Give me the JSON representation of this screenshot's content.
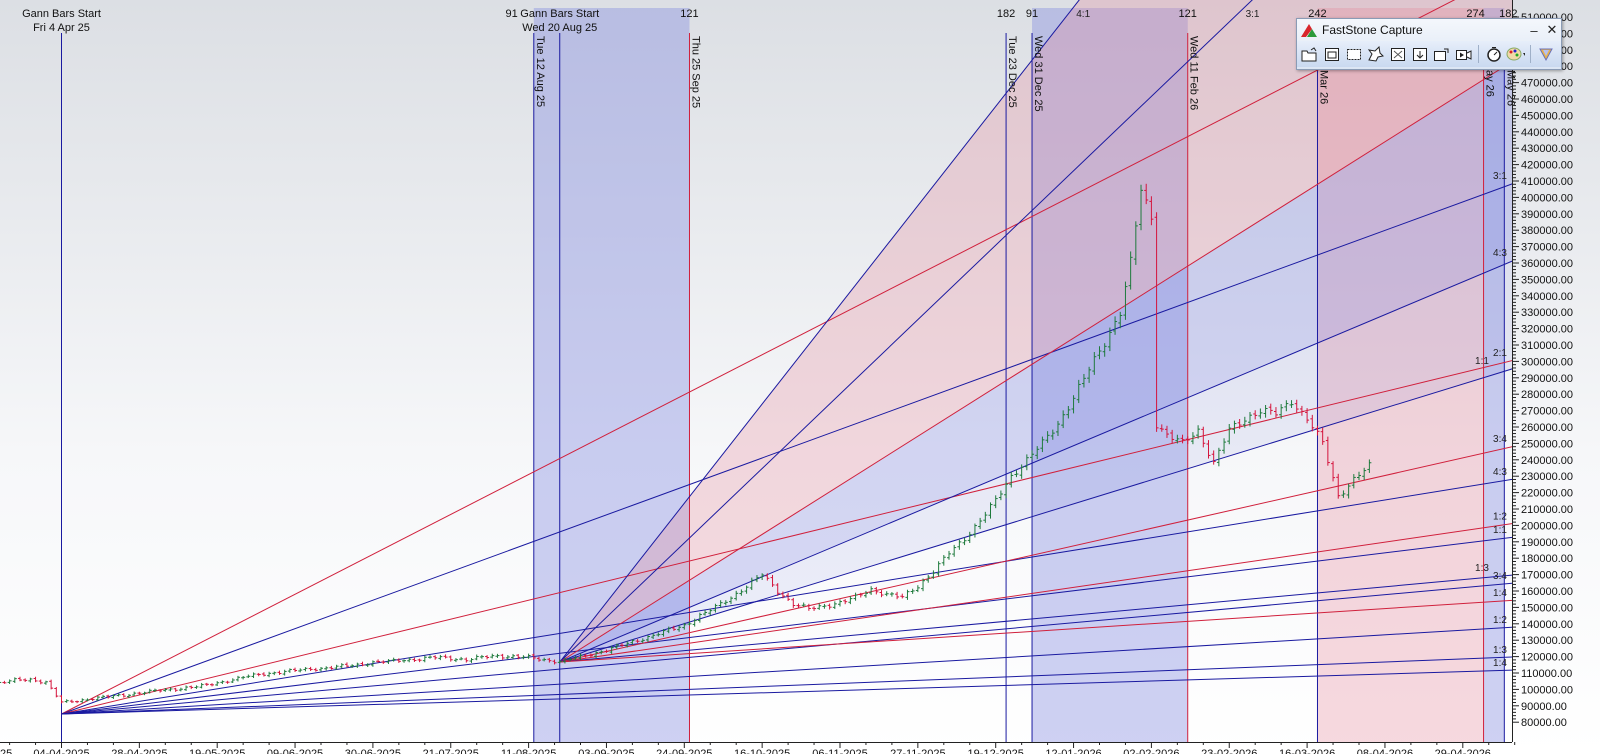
{
  "chart_data": {
    "type": "ohlc",
    "title": "",
    "xlabel": "",
    "ylabel": "",
    "ylim": [
      80000,
      510000
    ],
    "y_step": 10000,
    "grid": false,
    "x_ticks": [
      {
        "idx": 0,
        "label": "04-04-2025"
      },
      {
        "idx": 15,
        "label": "28-04-2025"
      },
      {
        "idx": 30,
        "label": "19-05-2025"
      },
      {
        "idx": 45,
        "label": "09-06-2025"
      },
      {
        "idx": 60,
        "label": "30-06-2025"
      },
      {
        "idx": 75,
        "label": "21-07-2025"
      },
      {
        "idx": 90,
        "label": "11-08-2025"
      },
      {
        "idx": 105,
        "label": "03-09-2025"
      },
      {
        "idx": 120,
        "label": "24-09-2025"
      },
      {
        "idx": 135,
        "label": "16-10-2025"
      },
      {
        "idx": 150,
        "label": "06-11-2025"
      },
      {
        "idx": 165,
        "label": "27-11-2025"
      },
      {
        "idx": 180,
        "label": "19-12-2025"
      },
      {
        "idx": 195,
        "label": "12-01-2026"
      },
      {
        "idx": 210,
        "label": "02-02-2026"
      },
      {
        "idx": 225,
        "label": "23-02-2026"
      },
      {
        "idx": 240,
        "label": "16-03-2026"
      },
      {
        "idx": 255,
        "label": "08-04-2026"
      },
      {
        "idx": 270,
        "label": "29-04-2026"
      }
    ],
    "partial_left_tick_label": "25",
    "price_closes": [
      [
        -12,
        104000
      ],
      [
        -9,
        105500
      ],
      [
        -6,
        106000
      ],
      [
        -3,
        104500
      ],
      [
        0,
        92000
      ],
      [
        3,
        93000
      ],
      [
        6,
        94500
      ],
      [
        9,
        95500
      ],
      [
        12,
        96500
      ],
      [
        15,
        98000
      ],
      [
        18,
        99000
      ],
      [
        21,
        100000
      ],
      [
        24,
        101000
      ],
      [
        27,
        102000
      ],
      [
        30,
        104000
      ],
      [
        33,
        106000
      ],
      [
        36,
        108000
      ],
      [
        39,
        109500
      ],
      [
        42,
        110500
      ],
      [
        45,
        111500
      ],
      [
        48,
        112500
      ],
      [
        51,
        113000
      ],
      [
        54,
        114000
      ],
      [
        57,
        115000
      ],
      [
        60,
        116500
      ],
      [
        63,
        117000
      ],
      [
        66,
        118000
      ],
      [
        69,
        118500
      ],
      [
        72,
        119500
      ],
      [
        75,
        119000
      ],
      [
        78,
        118000
      ],
      [
        81,
        119500
      ],
      [
        84,
        120500
      ],
      [
        87,
        120000
      ],
      [
        90,
        119500
      ],
      [
        93,
        118000
      ],
      [
        96,
        117000
      ],
      [
        99,
        119000
      ],
      [
        102,
        121500
      ],
      [
        105,
        124000
      ],
      [
        108,
        127000
      ],
      [
        111,
        130000
      ],
      [
        114,
        133000
      ],
      [
        117,
        136000
      ],
      [
        120,
        139000
      ],
      [
        123,
        145000
      ],
      [
        126,
        150000
      ],
      [
        129,
        156000
      ],
      [
        132,
        163000
      ],
      [
        135,
        170000
      ],
      [
        138,
        160000
      ],
      [
        141,
        152000
      ],
      [
        144,
        149000
      ],
      [
        147,
        151000
      ],
      [
        150,
        153000
      ],
      [
        153,
        156000
      ],
      [
        156,
        161000
      ],
      [
        159,
        158000
      ],
      [
        162,
        156000
      ],
      [
        165,
        163000
      ],
      [
        168,
        172000
      ],
      [
        171,
        183000
      ],
      [
        174,
        192000
      ],
      [
        177,
        203000
      ],
      [
        180,
        215000
      ],
      [
        183,
        230000
      ],
      [
        186,
        240000
      ],
      [
        189,
        250000
      ],
      [
        192,
        262000
      ],
      [
        195,
        278000
      ],
      [
        198,
        295000
      ],
      [
        201,
        312000
      ],
      [
        204,
        330000
      ],
      [
        206,
        360000
      ],
      [
        208,
        405000
      ],
      [
        210,
        388000
      ],
      [
        211,
        262000
      ],
      [
        213,
        255000
      ],
      [
        216,
        250000
      ],
      [
        219,
        258000
      ],
      [
        222,
        238000
      ],
      [
        225,
        258000
      ],
      [
        228,
        265000
      ],
      [
        231,
        270000
      ],
      [
        234,
        268000
      ],
      [
        237,
        276000
      ],
      [
        240,
        265000
      ],
      [
        243,
        250000
      ],
      [
        246,
        218000
      ],
      [
        249,
        228000
      ],
      [
        252,
        236000
      ]
    ],
    "colors": {
      "up": "#1e7a3c",
      "down": "#d4143c",
      "blue_line": "#1a1aa0",
      "red_line": "#d0203c",
      "blue_shade": "#7f86e0",
      "red_shade": "#e58a9a"
    },
    "fans": [
      {
        "name": "Gann Bars Start",
        "date": "Fri 4 Apr 25",
        "origin": [
          0,
          85000
        ],
        "lines": [
          {
            "ratio": "",
            "color": "red",
            "end": [
              280,
              539300
            ]
          },
          {
            "ratio": "3:1",
            "color": "blue",
            "end": [
              280,
              408800
            ]
          },
          {
            "ratio": "2:1",
            "color": "red",
            "end": [
              280,
              300900
            ]
          },
          {
            "ratio": "4:3",
            "color": "blue",
            "end": [
              280,
              228300
            ]
          },
          {
            "ratio": "1:1",
            "color": "blue",
            "end": [
              280,
              192900
            ]
          },
          {
            "ratio": "3:4",
            "color": "blue",
            "end": [
              280,
              164900
            ]
          },
          {
            "ratio": "1:2",
            "color": "blue",
            "end": [
              280,
              138000
            ]
          },
          {
            "ratio": "1:3",
            "color": "blue",
            "end": [
              280,
              119800
            ]
          },
          {
            "ratio": "1:4",
            "color": "blue",
            "end": [
              280,
              111800
            ]
          }
        ]
      },
      {
        "name": "Gann Bars Start",
        "date": "Wed 20 Aug 25",
        "origin": [
          96,
          116700
        ],
        "lines": [
          {
            "ratio": "4:1",
            "color": "blue",
            "end": [
              280,
              858800
            ]
          },
          {
            "ratio": "3:1",
            "color": "blue",
            "end": [
              280,
              673400
            ]
          },
          {
            "ratio": "",
            "color": "red",
            "end": [
              280,
              483800
            ]
          },
          {
            "ratio": "4:3",
            "color": "blue",
            "end": [
              280,
              361800
            ]
          },
          {
            "ratio": "1:1",
            "color": "blue",
            "end": [
              280,
              295900
            ]
          },
          {
            "ratio": "3:4",
            "color": "red",
            "end": [
              280,
              248300
            ]
          },
          {
            "ratio": "1:2",
            "color": "red",
            "end": [
              280,
              201300
            ]
          },
          {
            "ratio": "1:3",
            "color": "blue",
            "end": [
              280,
              169800
            ]
          },
          {
            "ratio": "1:4",
            "color": "red",
            "end": [
              280,
              154400
            ]
          }
        ]
      }
    ],
    "vertical_markers": [
      {
        "idx": 91,
        "color": "blue",
        "label": "Tue 12 Aug 25",
        "count": "91"
      },
      {
        "idx": 121,
        "color": "red",
        "label": "Thu 25 Sep 25",
        "count": "121"
      },
      {
        "idx": 182,
        "color": "blue",
        "label": "Tue 23 Dec 25",
        "count": "182"
      },
      {
        "idx": 187,
        "color": "blue",
        "label": "Wed 31 Dec 25",
        "count": "91"
      },
      {
        "idx": 217,
        "color": "red",
        "label": "Wed 11 Feb 26",
        "count": "121"
      },
      {
        "idx": 242,
        "color": "blue",
        "label": "Mar 26",
        "count": "242"
      },
      {
        "idx": 274,
        "color": "red",
        "label": "ay 26",
        "count": "274"
      },
      {
        "idx": 278,
        "color": "blue",
        "label": "May 26",
        "count": "182"
      }
    ],
    "shaded_bands": [
      {
        "from": 91,
        "to": 121,
        "color": "blue"
      },
      {
        "from": 187,
        "to": 217,
        "color": "blue"
      },
      {
        "from": 242,
        "to": 274,
        "color": "red"
      },
      {
        "from": 274,
        "to": 278,
        "color": "blue"
      }
    ]
  },
  "capture_window": {
    "title": "FastStone Capture",
    "minimize": "–",
    "close": "✕",
    "tools": [
      "open-icon",
      "capture-window-icon",
      "capture-rectangle-icon",
      "capture-freehand-icon",
      "capture-fullscreen-icon",
      "capture-scrolling-icon",
      "capture-fixed-region-icon",
      "screen-record-icon",
      "timer-icon",
      "color-palette-icon",
      "settings-icon"
    ]
  }
}
